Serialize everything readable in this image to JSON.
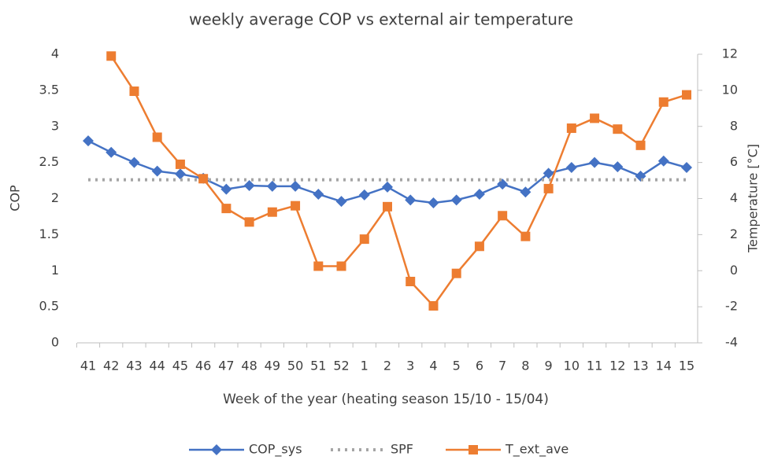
{
  "chart_data": {
    "type": "line",
    "title": "weekly average COP vs external air temperature",
    "x_label": "Week of the year (heating season 15/10 - 15/04)",
    "y_label": "COP",
    "y2_label": "Temperature [°C]",
    "categories": [
      "41",
      "42",
      "43",
      "44",
      "45",
      "46",
      "47",
      "48",
      "49",
      "50",
      "51",
      "52",
      "1",
      "2",
      "3",
      "4",
      "5",
      "6",
      "7",
      "8",
      "9",
      "10",
      "11",
      "12",
      "13",
      "14",
      "15"
    ],
    "series": [
      {
        "name": "COP_sys",
        "color": "#4472c4",
        "marker": "diamond",
        "style": "solid",
        "values": [
          2.8,
          2.64,
          2.5,
          2.38,
          2.34,
          2.28,
          2.13,
          2.18,
          2.17,
          2.17,
          2.06,
          1.96,
          2.05,
          2.16,
          1.98,
          1.94,
          1.98,
          2.06,
          2.2,
          2.09,
          2.35,
          2.43,
          2.5,
          2.44,
          2.31,
          2.52,
          2.43
        ]
      },
      {
        "name": "SPF",
        "color": "#a5a5a5",
        "marker": "none",
        "style": "dotted",
        "values": [
          2.26,
          2.26,
          2.26,
          2.26,
          2.26,
          2.26,
          2.26,
          2.26,
          2.26,
          2.26,
          2.26,
          2.26,
          2.26,
          2.26,
          2.26,
          2.26,
          2.26,
          2.26,
          2.26,
          2.26,
          2.26,
          2.26,
          2.26,
          2.26,
          2.26,
          2.26,
          2.26
        ]
      },
      {
        "name": "T_ext_ave",
        "color": "#ed7d31",
        "marker": "square",
        "style": "solid",
        "axis": "y2",
        "values": [
          null,
          11.9,
          9.95,
          7.4,
          5.9,
          5.1,
          3.45,
          2.7,
          3.25,
          3.6,
          0.25,
          0.25,
          1.75,
          3.55,
          -0.6,
          -1.95,
          -0.15,
          1.35,
          3.05,
          1.9,
          4.55,
          7.9,
          8.45,
          7.85,
          6.95,
          9.35,
          9.75
        ]
      }
    ],
    "ylim": [
      0,
      4
    ],
    "yticks": [
      0,
      0.5,
      1,
      1.5,
      2,
      2.5,
      3,
      3.5,
      4
    ],
    "y2lim": [
      -4,
      12
    ],
    "y2ticks": [
      -4,
      -2,
      0,
      2,
      4,
      6,
      8,
      10,
      12
    ],
    "legend": "bottom",
    "grid": false
  }
}
